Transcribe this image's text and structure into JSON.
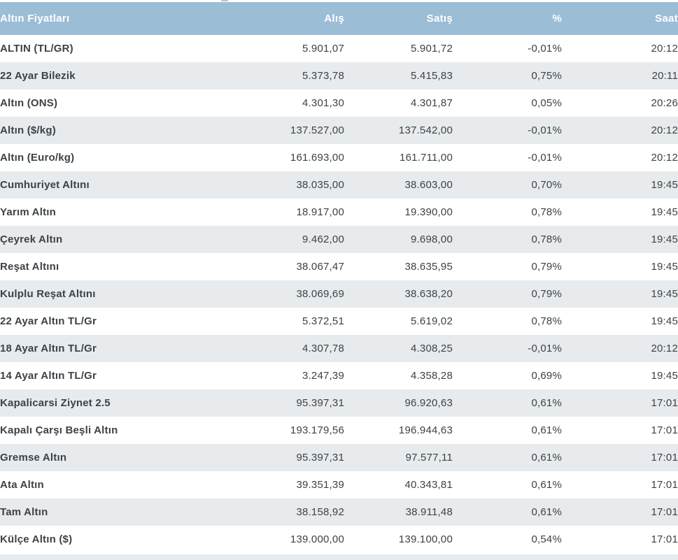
{
  "table": {
    "title": "Altın Fiyatları",
    "columns": [
      {
        "label": "Altın Fiyatları"
      },
      {
        "label": "Alış"
      },
      {
        "label": "Satış"
      },
      {
        "label": "%"
      },
      {
        "label": "Saat"
      }
    ],
    "rows": [
      [
        "ALTIN (TL/GR)",
        "5.901,07",
        "5.901,72",
        "-0,01%",
        "20:12"
      ],
      [
        "22 Ayar Bilezik",
        "5.373,78",
        "5.415,83",
        "0,75%",
        "20:11"
      ],
      [
        "Altın (ONS)",
        "4.301,30",
        "4.301,87",
        "0,05%",
        "20:26"
      ],
      [
        "Altın ($/kg)",
        "137.527,00",
        "137.542,00",
        "-0,01%",
        "20:12"
      ],
      [
        "Altın (Euro/kg)",
        "161.693,00",
        "161.711,00",
        "-0,01%",
        "20:12"
      ],
      [
        "Cumhuriyet Altını",
        "38.035,00",
        "38.603,00",
        "0,70%",
        "19:45"
      ],
      [
        "Yarım Altın",
        "18.917,00",
        "19.390,00",
        "0,78%",
        "19:45"
      ],
      [
        "Çeyrek Altın",
        "9.462,00",
        "9.698,00",
        "0,78%",
        "19:45"
      ],
      [
        "Reşat Altını",
        "38.067,47",
        "38.635,95",
        "0,79%",
        "19:45"
      ],
      [
        "Kulplu Reşat Altını",
        "38.069,69",
        "38.638,20",
        "0,79%",
        "19:45"
      ],
      [
        "22 Ayar Altın TL/Gr",
        "5.372,51",
        "5.619,02",
        "0,78%",
        "19:45"
      ],
      [
        "18 Ayar Altın TL/Gr",
        "4.307,78",
        "4.308,25",
        "-0,01%",
        "20:12"
      ],
      [
        "14 Ayar Altın TL/Gr",
        "3.247,39",
        "4.358,28",
        "0,69%",
        "19:45"
      ],
      [
        "Kapalicarsi Ziynet 2.5",
        "95.397,31",
        "96.920,63",
        "0,61%",
        "17:01"
      ],
      [
        "Kapalı Çarşı Beşli Altın",
        "193.179,56",
        "196.944,63",
        "0,61%",
        "17:01"
      ],
      [
        "Gremse Altın",
        "95.397,31",
        "97.577,11",
        "0,61%",
        "17:01"
      ],
      [
        "Ata Altın",
        "39.351,39",
        "40.343,81",
        "0,61%",
        "17:01"
      ],
      [
        "Tam Altın",
        "38.158,92",
        "38.911,48",
        "0,61%",
        "17:01"
      ],
      [
        "Külçe Altın ($)",
        "139.000,00",
        "139.100,00",
        "0,54%",
        "17:01"
      ]
    ],
    "colors": {
      "header_bg": "#9cbdd6",
      "header_text": "#ffffff",
      "row_bg": "#ffffff",
      "row_alt_bg": "#e7ebed",
      "text": "#3d4247"
    }
  }
}
